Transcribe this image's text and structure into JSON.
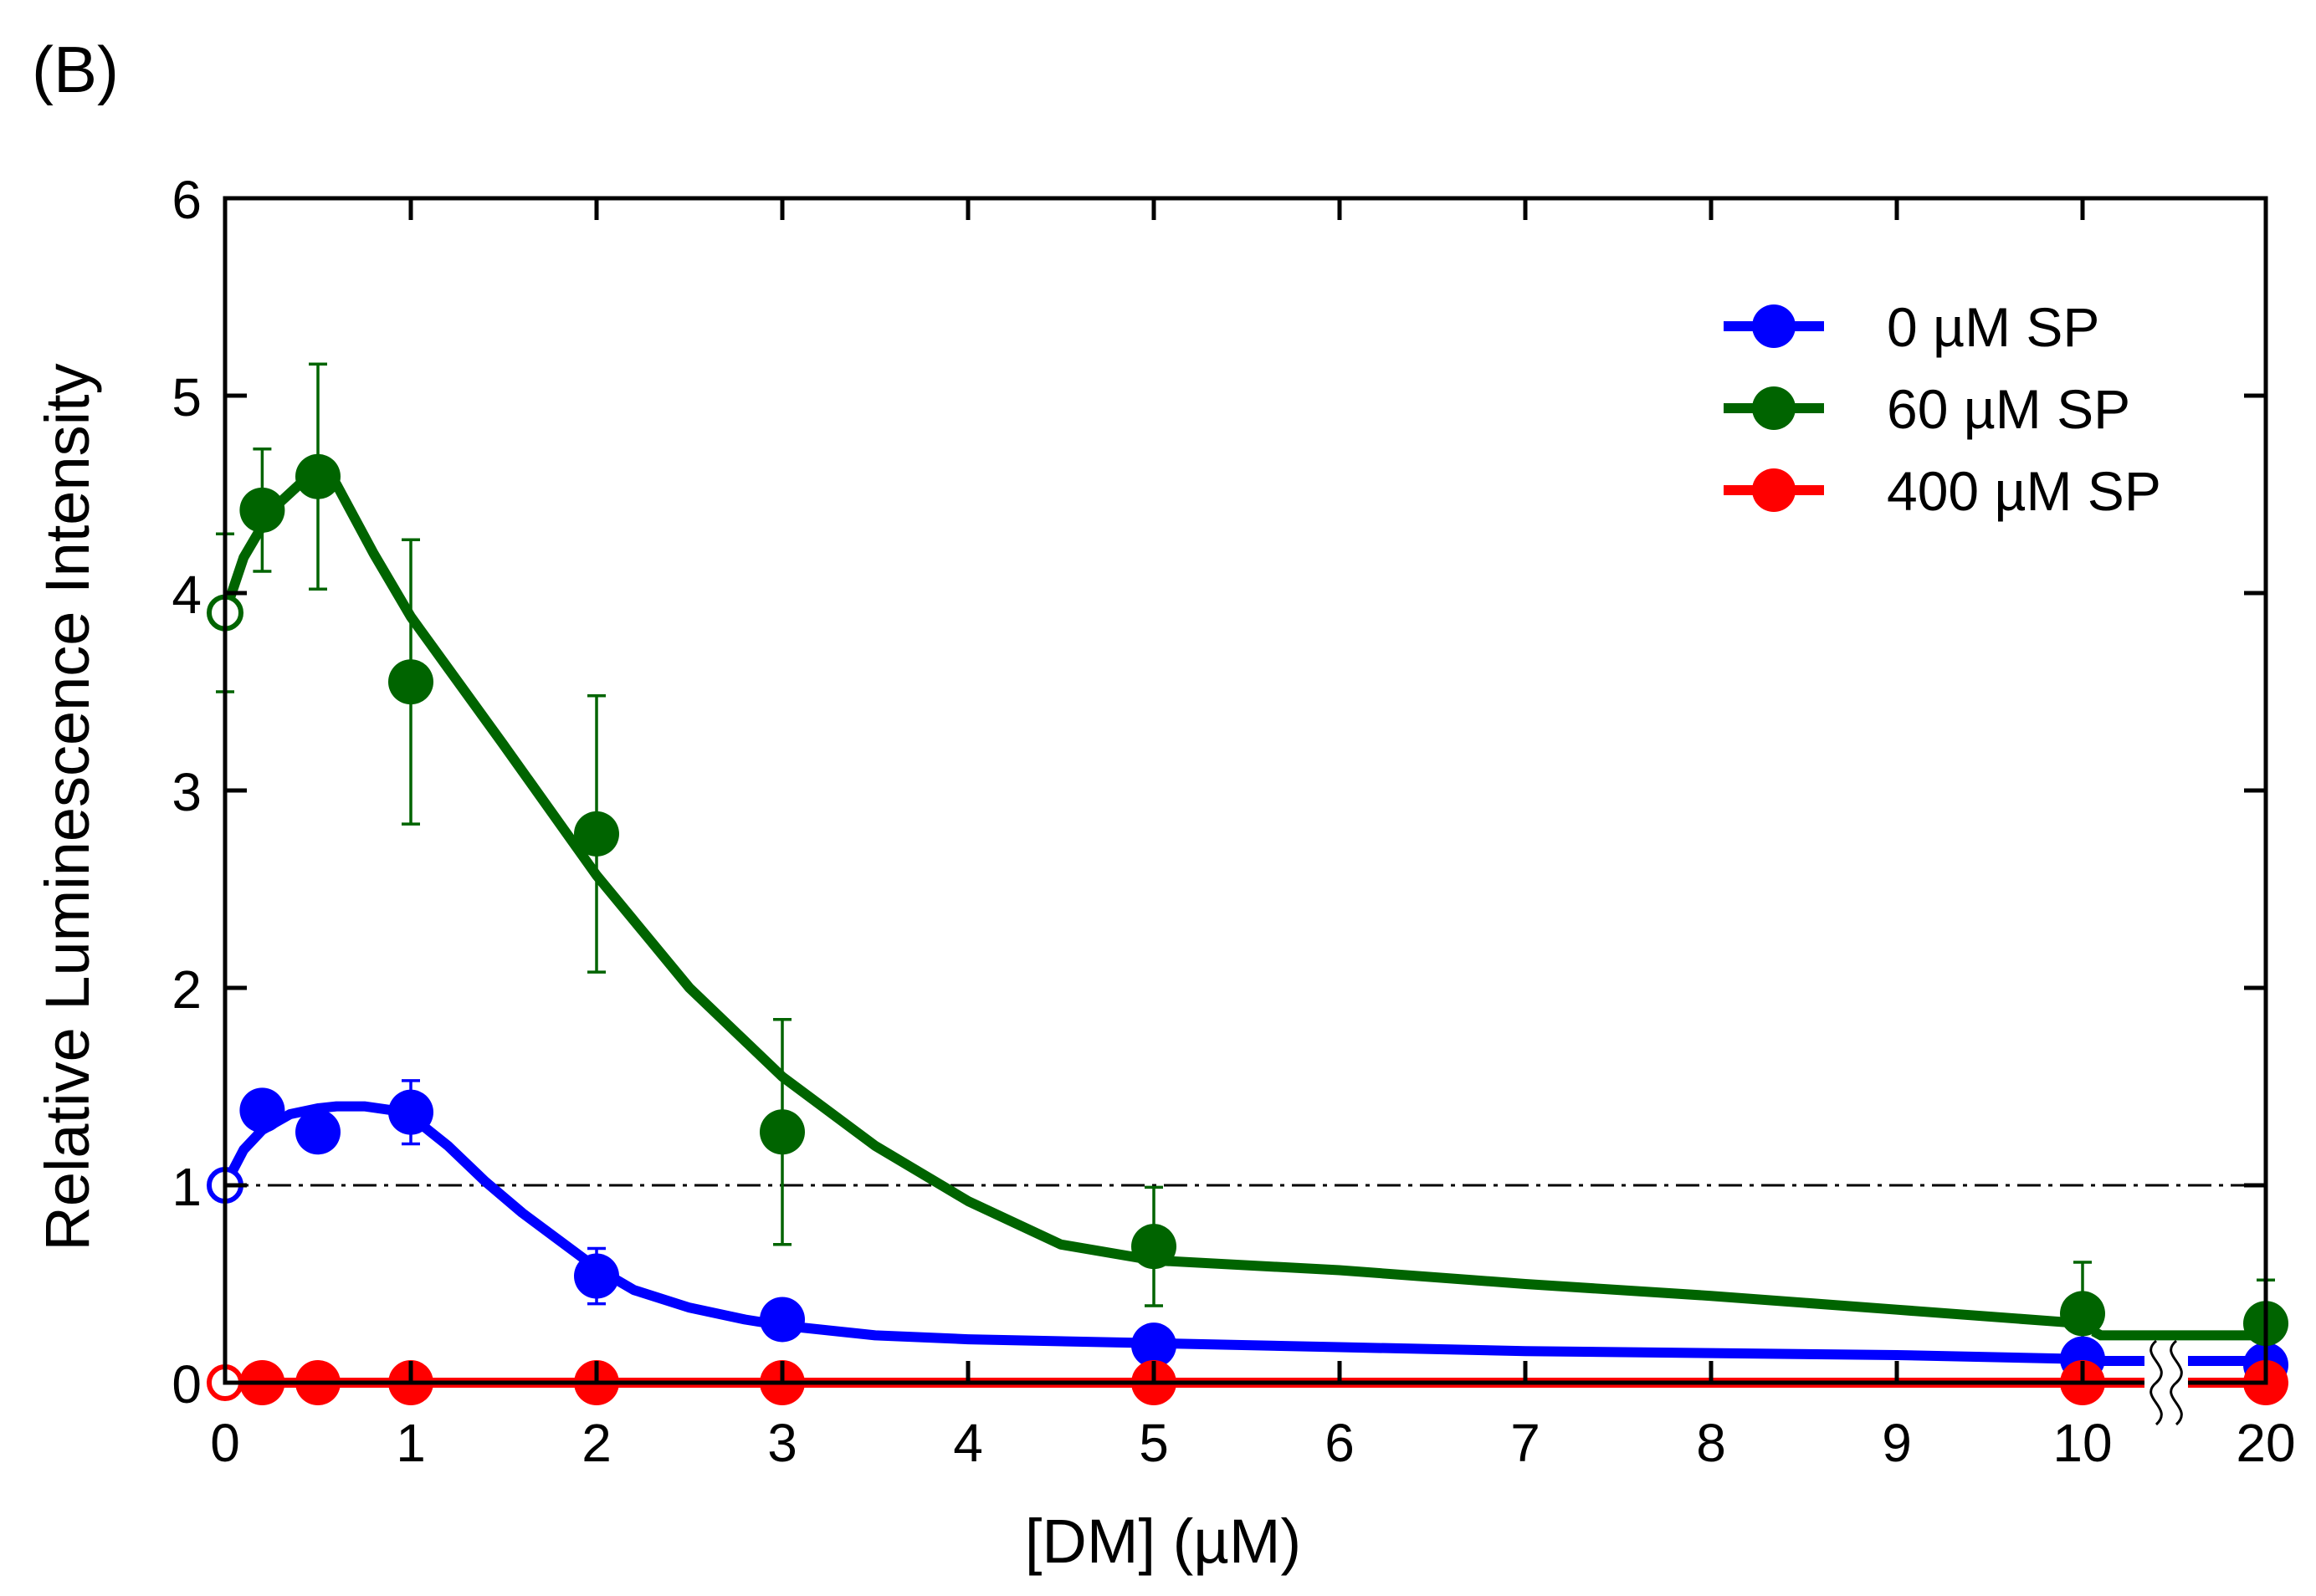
{
  "panel_label": "(B)",
  "chart_data": {
    "type": "line",
    "title": "",
    "xlabel": "[DM]  (µM)",
    "ylabel": "Relative Luminescence Intensity",
    "ylim": [
      0,
      6
    ],
    "y_ticks": [
      "0",
      "1",
      "2",
      "3",
      "4",
      "5",
      "6"
    ],
    "x_ticks": [
      "0",
      "1",
      "2",
      "3",
      "4",
      "5",
      "6",
      "7",
      "8",
      "9",
      "10",
      "20"
    ],
    "x_axis_note": "axis break between 10 and 20",
    "reference_line": {
      "y": 1,
      "style": "dash-dot"
    },
    "legend_position": "top-right",
    "series": [
      {
        "name": "0 µM SP",
        "color": "#0000ff",
        "x": [
          0,
          0.2,
          0.5,
          1,
          2,
          3,
          5,
          10,
          20
        ],
        "y": [
          1.0,
          1.38,
          1.27,
          1.37,
          0.54,
          0.32,
          0.19,
          0.12,
          0.09
        ],
        "err": [
          0,
          0.07,
          0.03,
          0.16,
          0.14,
          0.03,
          0.02,
          0.02,
          0.02
        ],
        "open_first": true,
        "fit": [
          [
            0,
            1.0
          ],
          [
            0.1,
            1.18
          ],
          [
            0.2,
            1.28
          ],
          [
            0.35,
            1.36
          ],
          [
            0.5,
            1.39
          ],
          [
            0.6,
            1.4
          ],
          [
            0.75,
            1.4
          ],
          [
            0.9,
            1.38
          ],
          [
            1.0,
            1.35
          ],
          [
            1.2,
            1.2
          ],
          [
            1.4,
            1.02
          ],
          [
            1.6,
            0.86
          ],
          [
            1.8,
            0.72
          ],
          [
            2.0,
            0.58
          ],
          [
            2.2,
            0.47
          ],
          [
            2.5,
            0.38
          ],
          [
            2.8,
            0.32
          ],
          [
            3.0,
            0.29
          ],
          [
            3.5,
            0.24
          ],
          [
            4.0,
            0.22
          ],
          [
            5.0,
            0.2
          ],
          [
            6.0,
            0.18
          ],
          [
            7.0,
            0.16
          ],
          [
            8.0,
            0.15
          ],
          [
            9.0,
            0.14
          ],
          [
            10.0,
            0.12
          ],
          [
            10.4,
            0.12
          ]
        ],
        "fit_tail": [
          [
            10.6,
            0.11
          ],
          [
            11.0,
            0.11
          ]
        ]
      },
      {
        "name": "60 µM SP",
        "color": "#006400",
        "x": [
          0,
          0.2,
          0.5,
          1,
          2,
          3,
          5,
          10,
          20
        ],
        "y": [
          3.9,
          4.42,
          4.59,
          3.55,
          2.78,
          1.27,
          0.69,
          0.35,
          0.3
        ],
        "err": [
          0.4,
          0.31,
          0.57,
          0.72,
          0.7,
          0.57,
          0.3,
          0.26,
          0.22
        ],
        "open_first": true,
        "fit": [
          [
            0,
            3.9
          ],
          [
            0.1,
            4.18
          ],
          [
            0.25,
            4.42
          ],
          [
            0.4,
            4.55
          ],
          [
            0.6,
            4.55
          ],
          [
            0.8,
            4.2
          ],
          [
            1.0,
            3.88
          ],
          [
            1.2,
            3.62
          ],
          [
            1.5,
            3.23
          ],
          [
            2.0,
            2.57
          ],
          [
            2.5,
            2.0
          ],
          [
            3.0,
            1.55
          ],
          [
            3.5,
            1.2
          ],
          [
            4.0,
            0.92
          ],
          [
            4.5,
            0.7
          ],
          [
            5.0,
            0.62
          ],
          [
            6.0,
            0.57
          ],
          [
            7.0,
            0.5
          ],
          [
            8.0,
            0.44
          ],
          [
            9.0,
            0.37
          ],
          [
            10.0,
            0.3
          ],
          [
            10.4,
            0.27
          ]
        ],
        "fit_tail": [
          [
            10.6,
            0.26
          ],
          [
            11.0,
            0.24
          ]
        ]
      },
      {
        "name": "400 µM SP",
        "color": "#ff0000",
        "x": [
          0,
          0.2,
          0.5,
          1,
          2,
          3,
          5,
          10,
          20
        ],
        "y": [
          0,
          0,
          0,
          0,
          0,
          0,
          0,
          0,
          0
        ],
        "err": [
          0,
          0,
          0,
          0,
          0,
          0,
          0,
          0,
          0
        ],
        "open_first": true,
        "fit": [
          [
            0,
            0
          ],
          [
            10.4,
            0
          ]
        ],
        "fit_tail": [
          [
            10.6,
            0
          ],
          [
            11.0,
            0
          ]
        ]
      }
    ]
  }
}
